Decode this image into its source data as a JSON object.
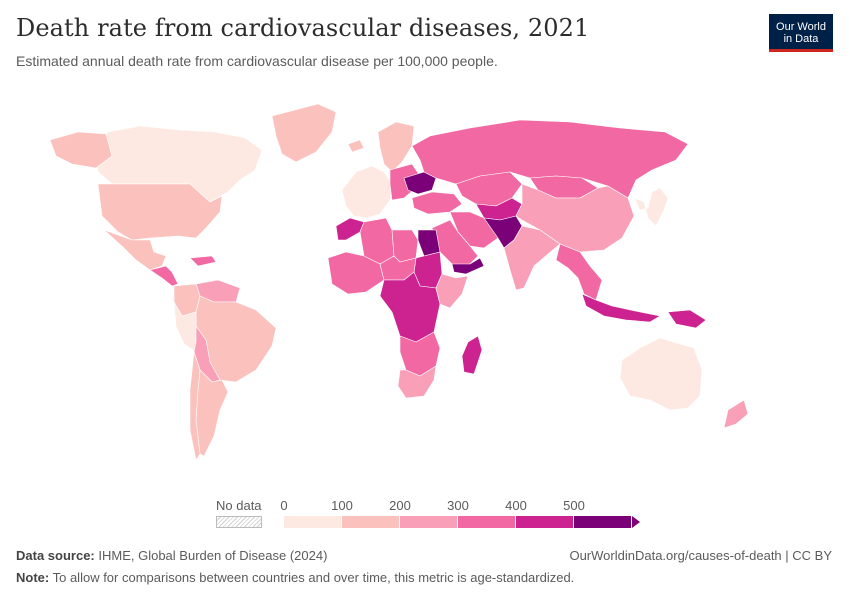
{
  "header": {
    "title": "Death rate from cardiovascular diseases, 2021",
    "subtitle": "Estimated annual death rate from cardiovascular disease per 100,000 people."
  },
  "logo": {
    "line1": "Our World",
    "line2": "in Data",
    "bg_color": "#002147",
    "accent_color": "#ce261e"
  },
  "map": {
    "regions": [
      {
        "name": "Canada",
        "bin": 0
      },
      {
        "name": "Greenland",
        "bin": 1
      },
      {
        "name": "Alaska",
        "bin": 1
      },
      {
        "name": "United States",
        "bin": 1
      },
      {
        "name": "Mexico",
        "bin": 1
      },
      {
        "name": "Central America",
        "bin": 3
      },
      {
        "name": "Caribbean",
        "bin": 3
      },
      {
        "name": "Venezuela / Guianas",
        "bin": 2
      },
      {
        "name": "Colombia",
        "bin": 1
      },
      {
        "name": "Brazil",
        "bin": 1
      },
      {
        "name": "Peru",
        "bin": 0
      },
      {
        "name": "Bolivia / Paraguay",
        "bin": 2
      },
      {
        "name": "Argentina",
        "bin": 1
      },
      {
        "name": "Chile",
        "bin": 1
      },
      {
        "name": "Iceland",
        "bin": 1
      },
      {
        "name": "Western Europe",
        "bin": 0
      },
      {
        "name": "Scandinavia",
        "bin": 1
      },
      {
        "name": "Eastern Europe",
        "bin": 3
      },
      {
        "name": "Ukraine",
        "bin": 5
      },
      {
        "name": "Russia",
        "bin": 3
      },
      {
        "name": "Kazakhstan",
        "bin": 3
      },
      {
        "name": "Central Asia",
        "bin": 4
      },
      {
        "name": "Mongolia",
        "bin": 3
      },
      {
        "name": "China",
        "bin": 2
      },
      {
        "name": "Japan / Korea",
        "bin": 0
      },
      {
        "name": "Turkey / Caucasus",
        "bin": 3
      },
      {
        "name": "Iran",
        "bin": 3
      },
      {
        "name": "Afghanistan / Pakistan",
        "bin": 5
      },
      {
        "name": "Arabian Peninsula",
        "bin": 3
      },
      {
        "name": "Yemen",
        "bin": 5
      },
      {
        "name": "India",
        "bin": 2
      },
      {
        "name": "Southeast Asia",
        "bin": 3
      },
      {
        "name": "Indonesia",
        "bin": 4
      },
      {
        "name": "Papua New Guinea",
        "bin": 4
      },
      {
        "name": "Australia",
        "bin": 0
      },
      {
        "name": "New Zealand",
        "bin": 2
      },
      {
        "name": "Morocco",
        "bin": 4
      },
      {
        "name": "Algeria",
        "bin": 3
      },
      {
        "name": "Libya",
        "bin": 3
      },
      {
        "name": "Egypt",
        "bin": 5
      },
      {
        "name": "Sudan",
        "bin": 4
      },
      {
        "name": "West Africa",
        "bin": 3
      },
      {
        "name": "Sahel",
        "bin": 3
      },
      {
        "name": "Central Africa",
        "bin": 4
      },
      {
        "name": "East Africa",
        "bin": 2
      },
      {
        "name": "Southern Africa",
        "bin": 3
      },
      {
        "name": "South Africa",
        "bin": 2
      },
      {
        "name": "Madagascar",
        "bin": 4
      }
    ]
  },
  "legend": {
    "no_data_label": "No data",
    "ticks": [
      "0",
      "100",
      "200",
      "300",
      "400",
      "500"
    ],
    "colors": [
      "#fde9e2",
      "#fbc1bd",
      "#f9a0b8",
      "#f168a3",
      "#cd2390",
      "#7a0177"
    ]
  },
  "footer": {
    "source_label": "Data source:",
    "source_text": "IHME, Global Burden of Disease (2024)",
    "note_label": "Note:",
    "note_text": "To allow for comparisons between countries and over time, this metric is age-standardized.",
    "right_text": "OurWorldinData.org/causes-of-death | CC BY"
  }
}
